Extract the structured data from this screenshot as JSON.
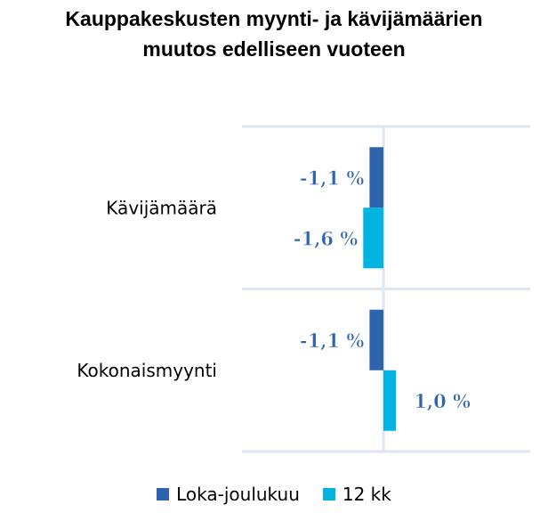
{
  "chart_data": {
    "type": "bar",
    "orientation": "horizontal",
    "title": "Kauppakeskusten myynti- ja kävijämäärien muutos edelliseen vuoteen",
    "title_lines": [
      "Kauppakeskusten myynti- ja kävijämäärien",
      "muutos edelliseen vuoteen"
    ],
    "categories": [
      "Kävijämäärä",
      "Kokonaismyynti"
    ],
    "series": [
      {
        "name": "Loka-joulukuu",
        "color": "#2E64AD",
        "values": [
          -1.1,
          -1.1
        ],
        "labels": [
          "-1,1 %",
          "-1,1 %"
        ]
      },
      {
        "name": "12 kk",
        "color": "#00B4E1",
        "values": [
          -1.6,
          1.0
        ],
        "labels": [
          "-1,6 %",
          "1,0 %"
        ]
      }
    ],
    "xlim": [
      -10,
      10
    ],
    "gridlines": "category separators",
    "legend_position": "bottom",
    "data_label_color": "#2E64AD"
  }
}
